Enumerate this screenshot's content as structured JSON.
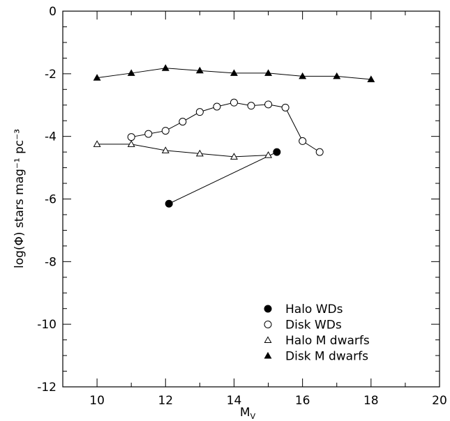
{
  "chart_data": {
    "type": "scatter",
    "xlabel": "M",
    "xlabel_sub": "V",
    "ylabel": "log(Φ) stars mag⁻¹ pc⁻³",
    "xlim": [
      9,
      20
    ],
    "ylim": [
      -12,
      0
    ],
    "x_ticks": [
      "10",
      "12",
      "14",
      "16",
      "18",
      "20"
    ],
    "y_ticks": [
      "0",
      "-2",
      "-4",
      "-6",
      "-8",
      "-10",
      "-12"
    ],
    "legend_position": "bottom-right",
    "series": [
      {
        "name": "Halo WDs",
        "marker": "filled-circle",
        "points": [
          [
            12.1,
            -6.15
          ],
          [
            15.25,
            -4.5
          ]
        ]
      },
      {
        "name": "Disk WDs",
        "marker": "open-circle",
        "points": [
          [
            11.0,
            -4.02
          ],
          [
            11.5,
            -3.92
          ],
          [
            12.0,
            -3.82
          ],
          [
            12.5,
            -3.53
          ],
          [
            13.0,
            -3.22
          ],
          [
            13.5,
            -3.05
          ],
          [
            14.0,
            -2.92
          ],
          [
            14.5,
            -3.02
          ],
          [
            15.0,
            -2.98
          ],
          [
            15.5,
            -3.08
          ],
          [
            16.0,
            -4.15
          ],
          [
            16.5,
            -4.5
          ]
        ]
      },
      {
        "name": "Halo M dwarfs",
        "marker": "open-triangle",
        "points": [
          [
            10.0,
            -4.25
          ],
          [
            11.0,
            -4.25
          ],
          [
            12.0,
            -4.45
          ],
          [
            13.0,
            -4.55
          ],
          [
            14.0,
            -4.65
          ],
          [
            15.0,
            -4.6
          ]
        ]
      },
      {
        "name": "Disk M dwarfs",
        "marker": "filled-triangle",
        "points": [
          [
            10.0,
            -2.13
          ],
          [
            11.0,
            -1.98
          ],
          [
            12.0,
            -1.82
          ],
          [
            13.0,
            -1.9
          ],
          [
            14.0,
            -1.98
          ],
          [
            15.0,
            -1.98
          ],
          [
            16.0,
            -2.08
          ],
          [
            17.0,
            -2.08
          ],
          [
            18.0,
            -2.18
          ]
        ]
      }
    ]
  }
}
